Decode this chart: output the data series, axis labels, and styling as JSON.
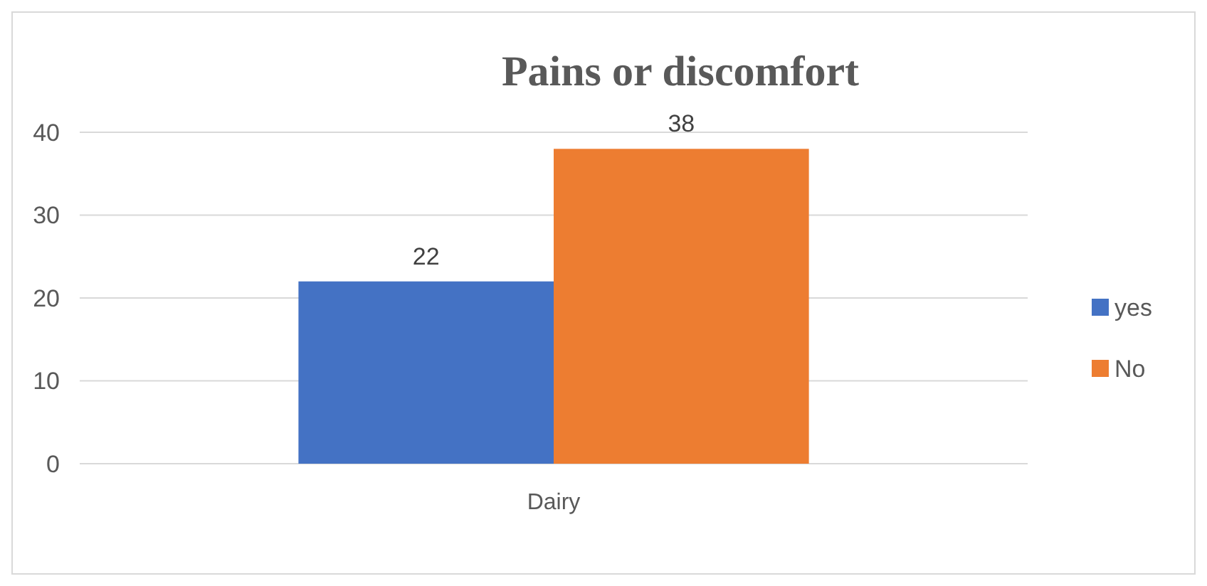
{
  "chart_data": {
    "type": "bar",
    "title": "Pains or discomfort",
    "categories": [
      "Dairy"
    ],
    "series": [
      {
        "name": "yes",
        "color": "#4472c4",
        "values": [
          22
        ]
      },
      {
        "name": "No",
        "color": "#ed7d31",
        "values": [
          38
        ]
      }
    ],
    "ylim": [
      0,
      40
    ],
    "yticks": [
      0,
      10,
      20,
      30,
      40
    ],
    "grid": "y",
    "legend": "right",
    "data_labels": true
  }
}
